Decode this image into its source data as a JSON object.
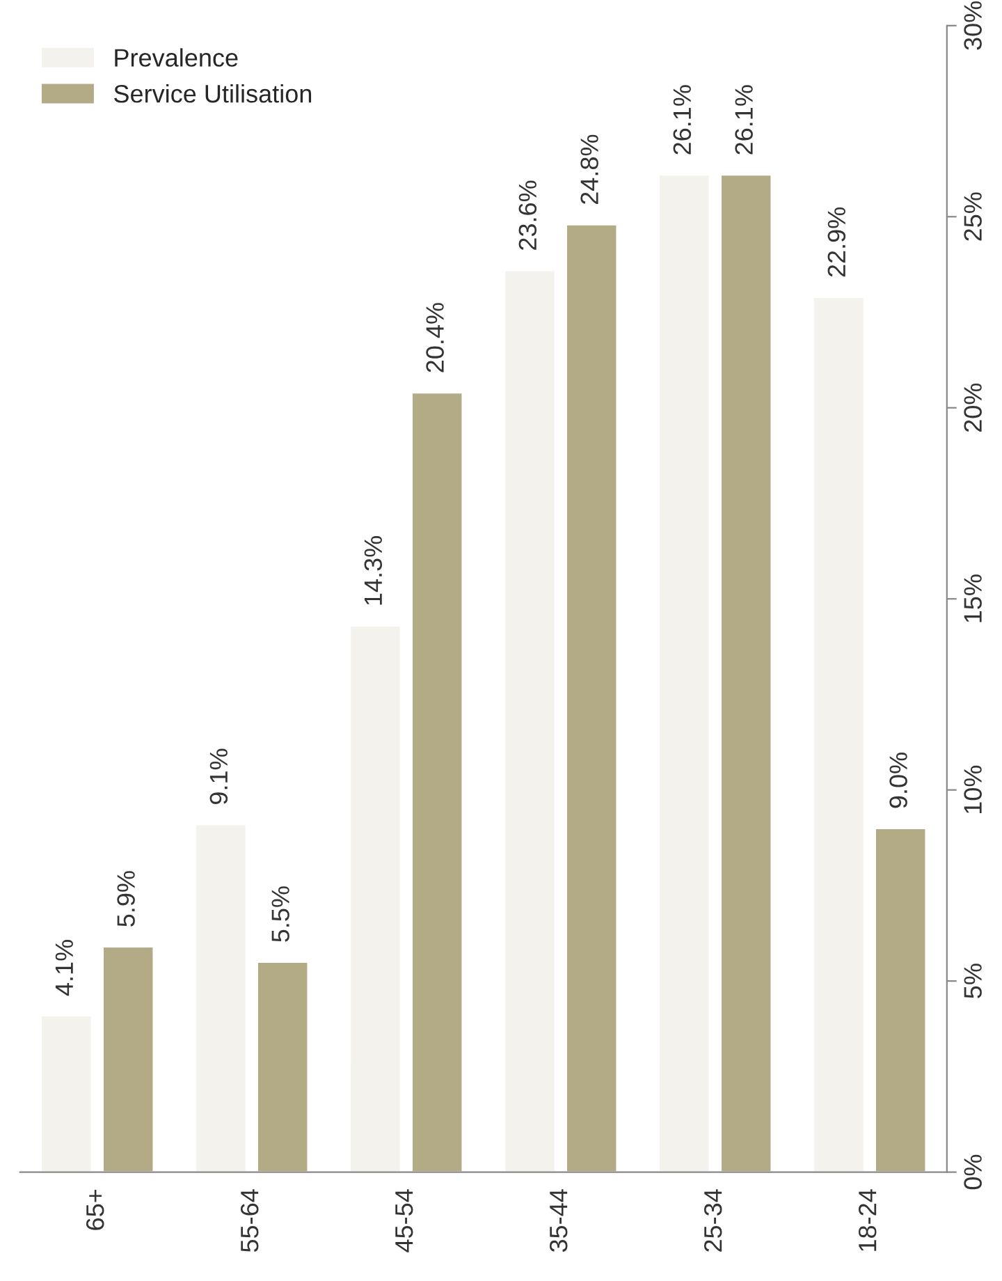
{
  "chart_data": {
    "type": "bar",
    "categories": [
      "65+",
      "55-64",
      "45-54",
      "35-44",
      "25-34",
      "18-24"
    ],
    "series": [
      {
        "name": "Prevalence",
        "color": "#f3f2ec",
        "values": [
          4.1,
          9.1,
          14.3,
          23.6,
          26.1,
          22.9
        ],
        "value_labels": [
          "4.1%",
          "9.1%",
          "14.3%",
          "23.6%",
          "26.1%",
          "22.9%"
        ]
      },
      {
        "name": "Service Utilisation",
        "color": "#b3ab86",
        "values": [
          5.9,
          5.5,
          20.4,
          24.8,
          26.1,
          9.0
        ],
        "value_labels": [
          "5.9%",
          "5.5%",
          "20.4%",
          "24.8%",
          "26.1%",
          "9.0%"
        ]
      }
    ],
    "ylim": [
      0,
      30
    ],
    "yticks": [
      {
        "value": 0,
        "label": "0%"
      },
      {
        "value": 5,
        "label": "5%"
      },
      {
        "value": 10,
        "label": "10%"
      },
      {
        "value": 15,
        "label": "15%"
      },
      {
        "value": 20,
        "label": "20%"
      },
      {
        "value": 25,
        "label": "25%"
      },
      {
        "value": 30,
        "label": "30%"
      }
    ],
    "grid": false,
    "legend": "top left"
  }
}
